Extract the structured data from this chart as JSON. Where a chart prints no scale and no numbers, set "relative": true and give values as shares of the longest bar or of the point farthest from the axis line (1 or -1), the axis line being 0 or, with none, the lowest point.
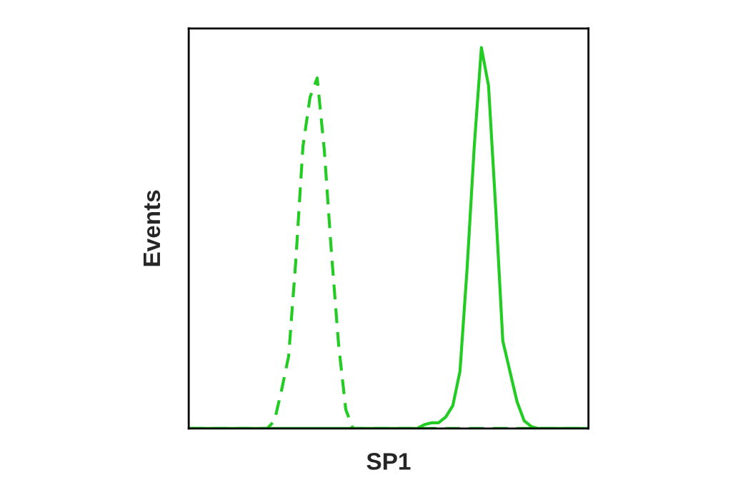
{
  "chart_data": {
    "type": "line",
    "relative": true,
    "xlabel": "SP1",
    "ylabel": "Events",
    "tick_labels": false,
    "grid": false,
    "legend": false,
    "categories": [
      null,
      null,
      null,
      null,
      null,
      null,
      null,
      null,
      null,
      null,
      null,
      null,
      null,
      null,
      null,
      null,
      null,
      null,
      null,
      null,
      null,
      null,
      null,
      null,
      null,
      null,
      null,
      null,
      null,
      null,
      null,
      null,
      null,
      null,
      null,
      null,
      null,
      null,
      null,
      null,
      null,
      null,
      null,
      null,
      null,
      null,
      null,
      null,
      null,
      null,
      null,
      null,
      null,
      null,
      null,
      null,
      null
    ],
    "series": [
      {
        "color": "#22cc22",
        "line_style": "dashed",
        "values": [
          0,
          0,
          0,
          0,
          0,
          0,
          0,
          0,
          0,
          0,
          0,
          0,
          0.02,
          0.1,
          0.19,
          0.44,
          0.74,
          0.87,
          0.92,
          0.73,
          0.46,
          0.22,
          0.05,
          0,
          0,
          0,
          0,
          0,
          0,
          0,
          0,
          0,
          0,
          0,
          0,
          0,
          0,
          0,
          0,
          0,
          0,
          0,
          0,
          0,
          0,
          0,
          0,
          0,
          0,
          0,
          0,
          0,
          0,
          0,
          0,
          0,
          0
        ]
      },
      {
        "color": "#22cc22",
        "line_style": "solid",
        "values": [
          0,
          0,
          0,
          0,
          0,
          0,
          0,
          0,
          0,
          0,
          0,
          0,
          0,
          0,
          0,
          0,
          0,
          0,
          0,
          0,
          0,
          0,
          0,
          0,
          0,
          0,
          0,
          0,
          0,
          0,
          0,
          0,
          0,
          0.01,
          0.015,
          0.015,
          0.03,
          0.06,
          0.15,
          0.42,
          0.74,
          1.0,
          0.9,
          0.58,
          0.23,
          0.15,
          0.07,
          0.02,
          0.005,
          0,
          0,
          0,
          0,
          0,
          0,
          0,
          0
        ]
      }
    ]
  }
}
